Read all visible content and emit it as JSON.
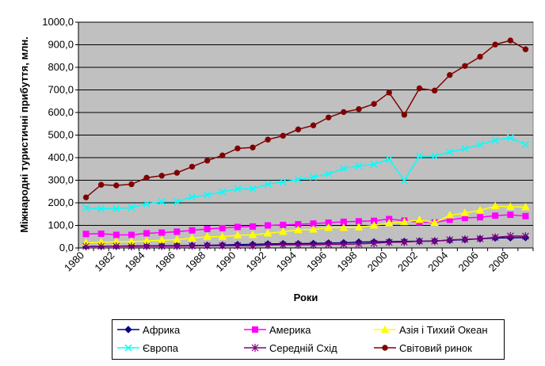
{
  "chart_data": {
    "type": "line",
    "title": "",
    "xlabel": "Роки",
    "ylabel": "Міжнародні туристичні прибуття, млн.",
    "ylim": [
      0,
      1000
    ],
    "yticks": [
      "0,0",
      "100,0",
      "200,0",
      "300,0",
      "400,0",
      "500,0",
      "600,0",
      "700,0",
      "800,0",
      "900,0",
      "1000,0"
    ],
    "x": [
      1980,
      1981,
      1982,
      1983,
      1984,
      1985,
      1986,
      1987,
      1988,
      1989,
      1990,
      1991,
      1992,
      1993,
      1994,
      1995,
      1996,
      1997,
      1998,
      1999,
      2000,
      2001,
      2002,
      2003,
      2004,
      2005,
      2006,
      2007,
      2008,
      2009
    ],
    "xticks": [
      "1980",
      "1982",
      "1984",
      "1986",
      "1988",
      "1990",
      "1992",
      "1994",
      "1996",
      "1998",
      "2000",
      "2002",
      "2004",
      "2006",
      "2008"
    ],
    "grid": "horizontal",
    "plot_background": "#c0c0c0",
    "legend_position": "bottom",
    "series": [
      {
        "name": "Африка",
        "color": "#000080",
        "marker": "diamond",
        "values": [
          7,
          8,
          8,
          9,
          9,
          10,
          10,
          11,
          12,
          13,
          15,
          16,
          18,
          19,
          19,
          20,
          22,
          23,
          26,
          27,
          28,
          29,
          30,
          31,
          34,
          37,
          41,
          44,
          45,
          46
        ]
      },
      {
        "name": "Америка",
        "color": "#ff00ff",
        "marker": "square",
        "values": [
          62,
          63,
          58,
          58,
          65,
          68,
          72,
          78,
          84,
          88,
          93,
          95,
          100,
          102,
          105,
          108,
          112,
          116,
          118,
          120,
          128,
          121,
          114,
          113,
          125,
          133,
          136,
          143,
          147,
          141
        ]
      },
      {
        "name": "Азія і Тихий Океан",
        "color": "#ffff00",
        "marker": "triangle",
        "values": [
          23,
          25,
          27,
          28,
          31,
          34,
          37,
          43,
          50,
          50,
          56,
          58,
          65,
          72,
          80,
          82,
          90,
          90,
          92,
          100,
          110,
          115,
          125,
          112,
          145,
          155,
          167,
          185,
          183,
          181
        ]
      },
      {
        "name": "Європа",
        "color": "#00ffff",
        "marker": "x",
        "values": [
          178,
          174,
          174,
          179,
          195,
          205,
          205,
          225,
          235,
          248,
          262,
          262,
          282,
          292,
          303,
          314,
          328,
          352,
          363,
          370,
          393,
          298,
          407,
          407,
          425,
          440,
          458,
          477,
          488,
          458
        ]
      },
      {
        "name": "Середній Схід",
        "color": "#800080",
        "marker": "star",
        "values": [
          7,
          7,
          8,
          7,
          8,
          8,
          8,
          9,
          10,
          10,
          10,
          9,
          13,
          14,
          14,
          14,
          16,
          16,
          18,
          21,
          25,
          26,
          30,
          30,
          36,
          38,
          41,
          47,
          53,
          52
        ]
      },
      {
        "name": "Світовий ринок",
        "color": "#800000",
        "marker": "circle",
        "values": [
          224,
          280,
          277,
          282,
          311,
          320,
          333,
          360,
          387,
          410,
          441,
          445,
          480,
          497,
          525,
          543,
          578,
          602,
          615,
          638,
          688,
          590,
          707,
          697,
          766,
          806,
          847,
          901,
          919,
          880
        ]
      }
    ]
  }
}
